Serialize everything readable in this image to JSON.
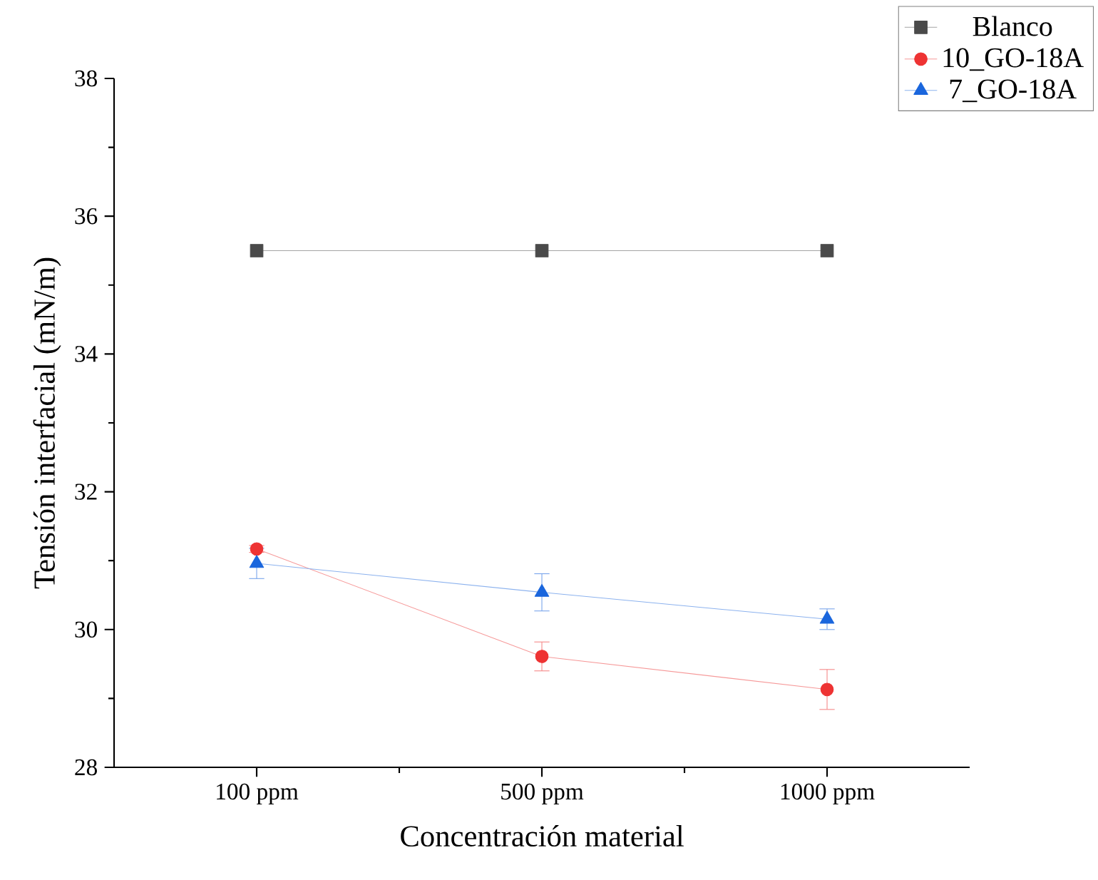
{
  "chart_data": {
    "type": "line",
    "xlabel": "Concentración material",
    "ylabel": "Tensión interfacial (mN/m)",
    "categories": [
      "100 ppm",
      "500 ppm",
      "1000 ppm"
    ],
    "series": [
      {
        "name": "Blanco",
        "color": "#4a4a4a",
        "marker": "square",
        "values": [
          35.5,
          35.5,
          35.5
        ]
      },
      {
        "name": "10_GO-18A",
        "color": "#ee3333",
        "marker": "circle",
        "values": [
          31.17,
          29.61,
          29.13
        ],
        "errors": [
          0.05,
          0.21,
          0.29
        ]
      },
      {
        "name": "7_GO-18A",
        "color": "#1a66dd",
        "marker": "triangle",
        "values": [
          30.96,
          30.54,
          30.15
        ],
        "errors": [
          0.22,
          0.27,
          0.15
        ]
      }
    ],
    "ylim": [
      28,
      38
    ],
    "yticks": [
      28,
      30,
      32,
      34,
      36,
      38
    ],
    "grid": false,
    "legend": "top right"
  }
}
